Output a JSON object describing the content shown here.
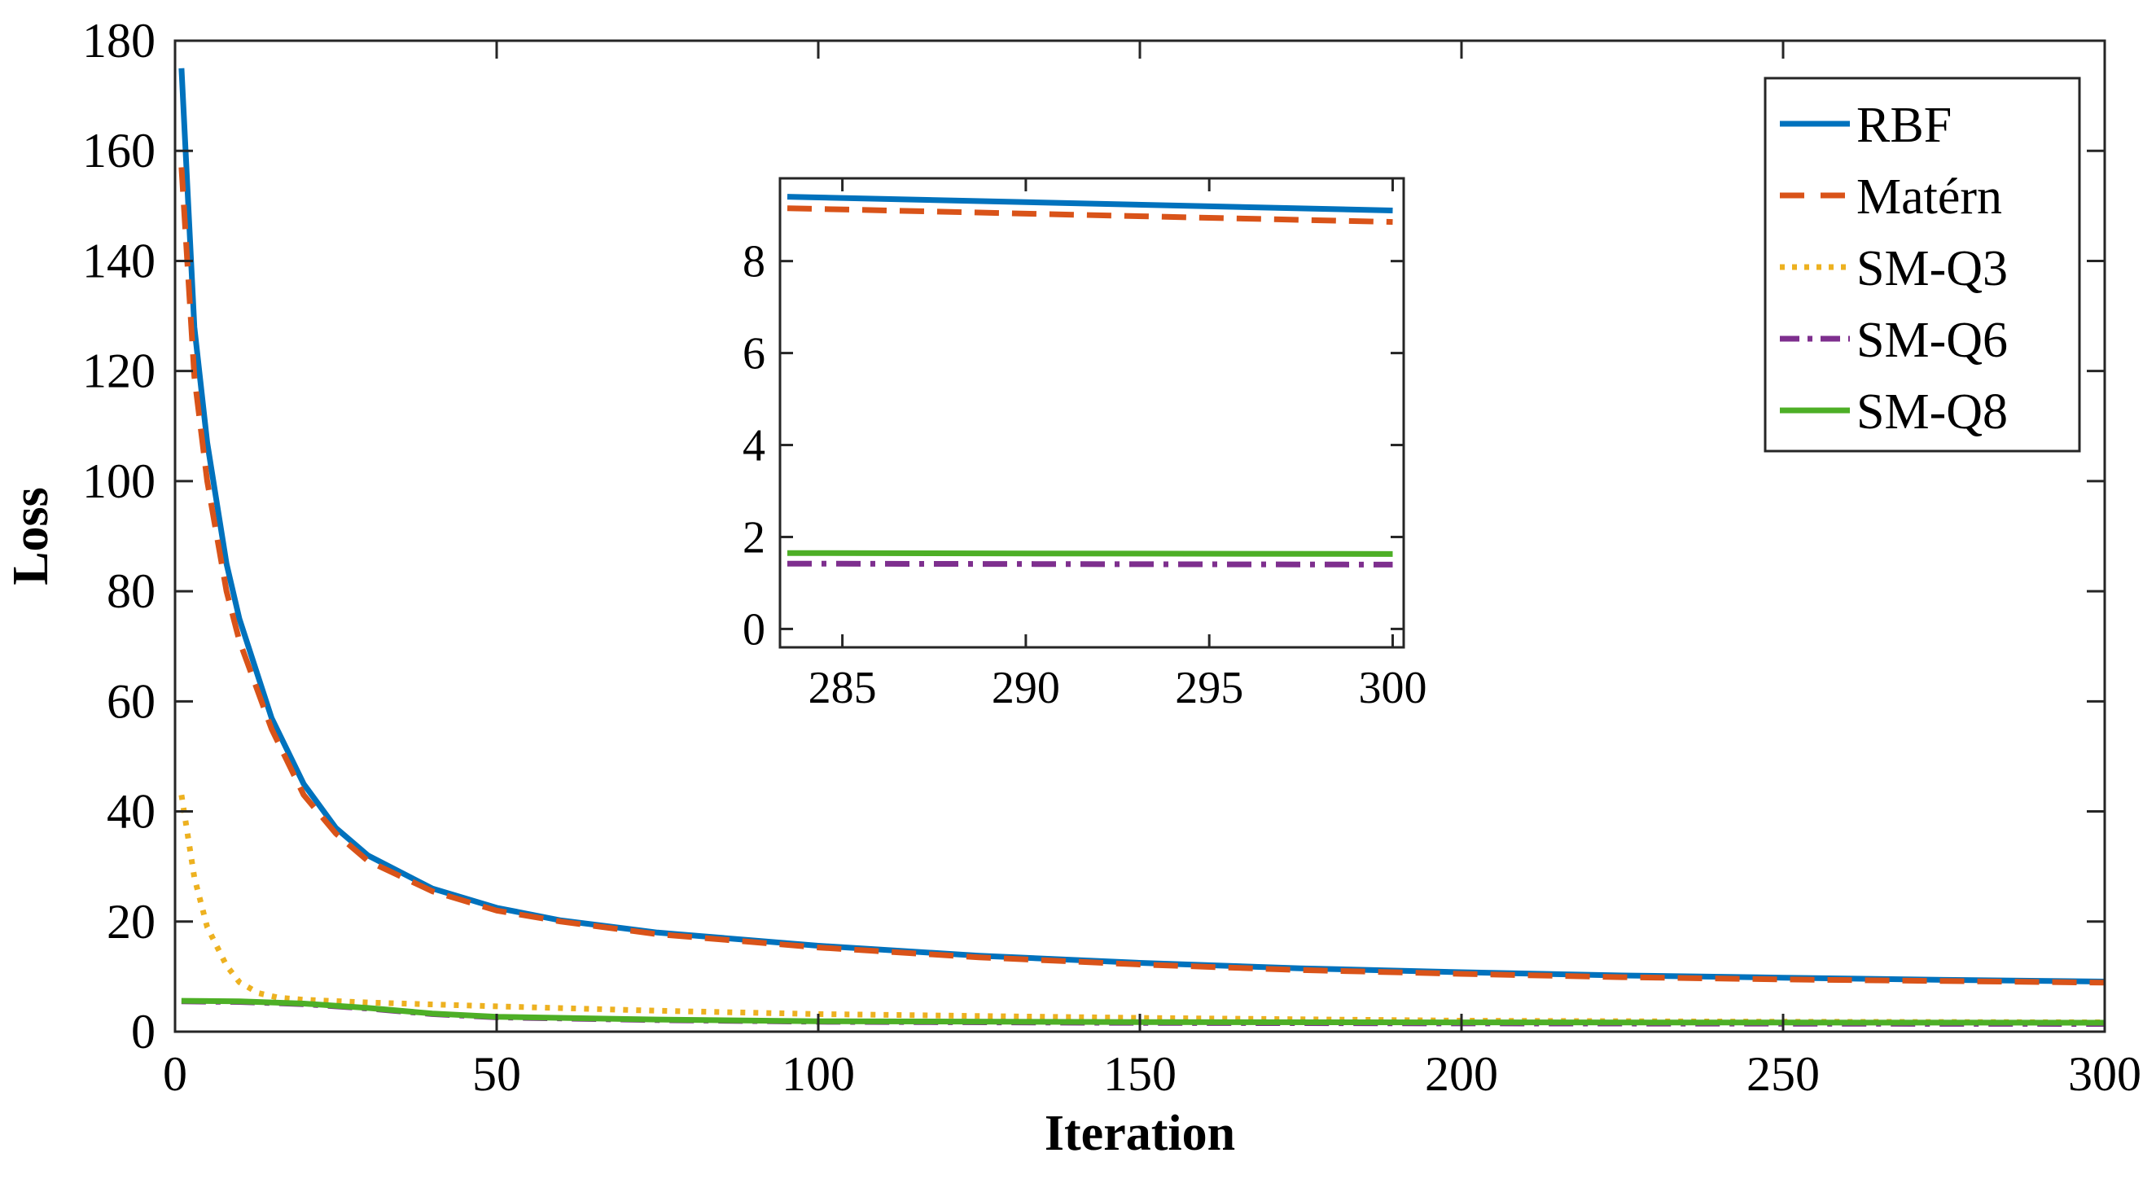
{
  "chart_data": [
    {
      "type": "line",
      "title": "",
      "xlabel": "Iteration",
      "ylabel": "Loss",
      "xlim": [
        0,
        300
      ],
      "ylim": [
        0,
        180
      ],
      "xticks": [
        "0",
        "50",
        "100",
        "150",
        "200",
        "250",
        "300"
      ],
      "yticks": [
        "0",
        "20",
        "40",
        "60",
        "80",
        "100",
        "120",
        "140",
        "160",
        "180"
      ],
      "grid": false,
      "legend": {
        "position": "top-right"
      },
      "series": [
        {
          "name": "RBF",
          "color": "#0072BD",
          "style": "solid",
          "x": [
            1,
            3,
            5,
            8,
            10,
            15,
            20,
            25,
            30,
            40,
            50,
            60,
            75,
            100,
            125,
            150,
            175,
            200,
            225,
            250,
            275,
            300
          ],
          "y": [
            175,
            128,
            107,
            85,
            75,
            57,
            45,
            37,
            32,
            26,
            22.5,
            20.2,
            18,
            15.6,
            13.8,
            12.5,
            11.5,
            10.8,
            10.2,
            9.8,
            9.4,
            9.1
          ]
        },
        {
          "name": "Matérn",
          "color": "#D95319",
          "style": "dashed",
          "x": [
            1,
            3,
            5,
            8,
            10,
            15,
            20,
            25,
            30,
            40,
            50,
            60,
            75,
            100,
            125,
            150,
            175,
            200,
            225,
            250,
            275,
            300
          ],
          "y": [
            157,
            119,
            100,
            80,
            71,
            55,
            43,
            36,
            31,
            25.5,
            22,
            20,
            17.7,
            15.3,
            13.5,
            12.2,
            11.2,
            10.5,
            9.9,
            9.5,
            9.2,
            8.9
          ]
        },
        {
          "name": "SM-Q3",
          "color": "#EDB120",
          "style": "dotted",
          "x": [
            1,
            3,
            5,
            8,
            10,
            13,
            16,
            20,
            30,
            50,
            75,
            100,
            150,
            200,
            250,
            300
          ],
          "y": [
            43,
            28,
            19,
            12,
            9,
            7,
            6.2,
            5.8,
            5.3,
            4.6,
            3.8,
            3.2,
            2.5,
            2.0,
            1.8,
            1.7
          ]
        },
        {
          "name": "SM-Q6",
          "color": "#7E2F8E",
          "style": "dashdot",
          "x": [
            1,
            10,
            20,
            30,
            40,
            50,
            75,
            100,
            150,
            200,
            250,
            300
          ],
          "y": [
            5.5,
            5.4,
            5.0,
            4.2,
            3.2,
            2.6,
            2.1,
            1.8,
            1.6,
            1.5,
            1.45,
            1.4
          ]
        },
        {
          "name": "SM-Q8",
          "color": "#4DAF26",
          "style": "solid",
          "x": [
            1,
            10,
            20,
            30,
            40,
            50,
            75,
            100,
            150,
            200,
            250,
            300
          ],
          "y": [
            5.6,
            5.5,
            5.1,
            4.3,
            3.3,
            2.7,
            2.2,
            1.9,
            1.75,
            1.68,
            1.65,
            1.63
          ]
        }
      ]
    },
    {
      "type": "line",
      "title": "",
      "xlabel": "",
      "ylabel": "",
      "xlim": [
        283.3,
        300.3
      ],
      "ylim": [
        -0.4,
        9.8
      ],
      "xticks": [
        "285",
        "290",
        "295",
        "300"
      ],
      "yticks": [
        "0",
        "2",
        "4",
        "6",
        "8"
      ],
      "grid": false,
      "series": [
        {
          "color": "#0072BD",
          "style": "solid",
          "x": [
            283.5,
            300
          ],
          "y": [
            9.4,
            9.1
          ]
        },
        {
          "color": "#D95319",
          "style": "dashed",
          "x": [
            283.5,
            300
          ],
          "y": [
            9.15,
            8.85
          ]
        },
        {
          "color": "#7E2F8E",
          "style": "dashdot",
          "x": [
            283.5,
            300
          ],
          "y": [
            1.42,
            1.4
          ]
        },
        {
          "color": "#4DAF26",
          "style": "solid",
          "x": [
            283.5,
            300
          ],
          "y": [
            1.65,
            1.63
          ]
        }
      ]
    }
  ]
}
